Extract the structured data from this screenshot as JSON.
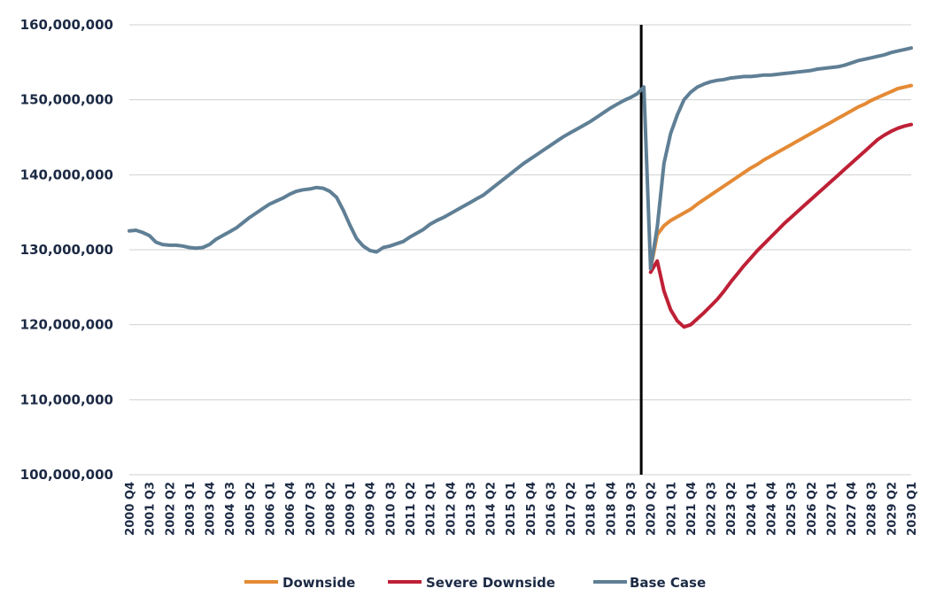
{
  "chart_data": {
    "type": "line",
    "title": "",
    "xlabel": "",
    "ylabel": "",
    "ylim": [
      100000000,
      160000000
    ],
    "yticks": [
      "100,000,000",
      "110,000,000",
      "120,000,000",
      "130,000,000",
      "140,000,000",
      "150,000,000",
      "160,000,000"
    ],
    "ytick_values": [
      100000000,
      110000000,
      120000000,
      130000000,
      140000000,
      150000000,
      160000000
    ],
    "x_range": [
      "2000 Q4",
      "2030 Q1"
    ],
    "xticks": [
      "2000 Q4",
      "2001 Q3",
      "2002 Q2",
      "2003 Q1",
      "2003 Q4",
      "2004 Q3",
      "2005 Q2",
      "2006 Q1",
      "2006 Q4",
      "2007 Q3",
      "2008 Q2",
      "2009 Q1",
      "2009 Q4",
      "2010 Q3",
      "2011 Q2",
      "2012 Q1",
      "2012 Q4",
      "2013 Q3",
      "2014 Q2",
      "2015 Q1",
      "2015 Q4",
      "2016 Q3",
      "2017 Q2",
      "2018 Q1",
      "2018 Q4",
      "2019 Q3",
      "2020 Q2",
      "2021 Q1",
      "2021 Q4",
      "2022 Q3",
      "2023 Q2",
      "2024 Q1",
      "2024 Q4",
      "2025 Q3",
      "2026 Q2",
      "2027 Q1",
      "2027 Q4",
      "2028 Q3",
      "2029 Q2",
      "2030 Q1"
    ],
    "grid": true,
    "legend_position": "bottom",
    "vertical_marker": "2020 Q1",
    "series": [
      {
        "name": "Base Case",
        "color": "#5f7f95",
        "points": [
          [
            "2000 Q4",
            132500000
          ],
          [
            "2001 Q1",
            132600000
          ],
          [
            "2001 Q2",
            132300000
          ],
          [
            "2001 Q3",
            131900000
          ],
          [
            "2001 Q4",
            131000000
          ],
          [
            "2002 Q1",
            130700000
          ],
          [
            "2002 Q2",
            130600000
          ],
          [
            "2002 Q3",
            130600000
          ],
          [
            "2002 Q4",
            130500000
          ],
          [
            "2003 Q1",
            130300000
          ],
          [
            "2003 Q2",
            130200000
          ],
          [
            "2003 Q3",
            130300000
          ],
          [
            "2003 Q4",
            130700000
          ],
          [
            "2004 Q1",
            131400000
          ],
          [
            "2004 Q2",
            131900000
          ],
          [
            "2004 Q3",
            132400000
          ],
          [
            "2004 Q4",
            132900000
          ],
          [
            "2005 Q1",
            133600000
          ],
          [
            "2005 Q2",
            134300000
          ],
          [
            "2005 Q3",
            134900000
          ],
          [
            "2005 Q4",
            135500000
          ],
          [
            "2006 Q1",
            136100000
          ],
          [
            "2006 Q2",
            136500000
          ],
          [
            "2006 Q3",
            136900000
          ],
          [
            "2006 Q4",
            137400000
          ],
          [
            "2007 Q1",
            137800000
          ],
          [
            "2007 Q2",
            138000000
          ],
          [
            "2007 Q3",
            138100000
          ],
          [
            "2007 Q4",
            138300000
          ],
          [
            "2008 Q1",
            138200000
          ],
          [
            "2008 Q2",
            137800000
          ],
          [
            "2008 Q3",
            137000000
          ],
          [
            "2008 Q4",
            135300000
          ],
          [
            "2009 Q1",
            133300000
          ],
          [
            "2009 Q2",
            131500000
          ],
          [
            "2009 Q3",
            130500000
          ],
          [
            "2009 Q4",
            129900000
          ],
          [
            "2010 Q1",
            129700000
          ],
          [
            "2010 Q2",
            130300000
          ],
          [
            "2010 Q3",
            130500000
          ],
          [
            "2010 Q4",
            130800000
          ],
          [
            "2011 Q1",
            131100000
          ],
          [
            "2011 Q2",
            131700000
          ],
          [
            "2011 Q3",
            132200000
          ],
          [
            "2011 Q4",
            132700000
          ],
          [
            "2012 Q1",
            133400000
          ],
          [
            "2012 Q2",
            133900000
          ],
          [
            "2012 Q3",
            134300000
          ],
          [
            "2012 Q4",
            134800000
          ],
          [
            "2013 Q1",
            135300000
          ],
          [
            "2013 Q2",
            135800000
          ],
          [
            "2013 Q3",
            136300000
          ],
          [
            "2013 Q4",
            136800000
          ],
          [
            "2014 Q1",
            137300000
          ],
          [
            "2014 Q2",
            138000000
          ],
          [
            "2014 Q3",
            138700000
          ],
          [
            "2014 Q4",
            139400000
          ],
          [
            "2015 Q1",
            140100000
          ],
          [
            "2015 Q2",
            140800000
          ],
          [
            "2015 Q3",
            141500000
          ],
          [
            "2015 Q4",
            142100000
          ],
          [
            "2016 Q1",
            142700000
          ],
          [
            "2016 Q2",
            143300000
          ],
          [
            "2016 Q3",
            143900000
          ],
          [
            "2016 Q4",
            144500000
          ],
          [
            "2017 Q1",
            145100000
          ],
          [
            "2017 Q2",
            145600000
          ],
          [
            "2017 Q3",
            146100000
          ],
          [
            "2017 Q4",
            146600000
          ],
          [
            "2018 Q1",
            147100000
          ],
          [
            "2018 Q2",
            147700000
          ],
          [
            "2018 Q3",
            148300000
          ],
          [
            "2018 Q4",
            148900000
          ],
          [
            "2019 Q1",
            149400000
          ],
          [
            "2019 Q2",
            149900000
          ],
          [
            "2019 Q3",
            150300000
          ],
          [
            "2019 Q4",
            150800000
          ],
          [
            "2020 Q1",
            151700000
          ],
          [
            "2020 Q2",
            127500000
          ],
          [
            "2020 Q3",
            133000000
          ],
          [
            "2020 Q4",
            141500000
          ],
          [
            "2021 Q1",
            145500000
          ],
          [
            "2021 Q2",
            148000000
          ],
          [
            "2021 Q3",
            150000000
          ],
          [
            "2021 Q4",
            151000000
          ],
          [
            "2022 Q1",
            151700000
          ],
          [
            "2022 Q2",
            152100000
          ],
          [
            "2022 Q3",
            152400000
          ],
          [
            "2022 Q4",
            152600000
          ],
          [
            "2023 Q1",
            152700000
          ],
          [
            "2023 Q2",
            152900000
          ],
          [
            "2023 Q3",
            153000000
          ],
          [
            "2023 Q4",
            153100000
          ],
          [
            "2024 Q1",
            153100000
          ],
          [
            "2024 Q2",
            153200000
          ],
          [
            "2024 Q3",
            153300000
          ],
          [
            "2024 Q4",
            153300000
          ],
          [
            "2025 Q1",
            153400000
          ],
          [
            "2025 Q2",
            153500000
          ],
          [
            "2025 Q3",
            153600000
          ],
          [
            "2025 Q4",
            153700000
          ],
          [
            "2026 Q1",
            153800000
          ],
          [
            "2026 Q2",
            153900000
          ],
          [
            "2026 Q3",
            154100000
          ],
          [
            "2026 Q4",
            154200000
          ],
          [
            "2027 Q1",
            154300000
          ],
          [
            "2027 Q2",
            154400000
          ],
          [
            "2027 Q3",
            154600000
          ],
          [
            "2027 Q4",
            154900000
          ],
          [
            "2028 Q1",
            155200000
          ],
          [
            "2028 Q2",
            155400000
          ],
          [
            "2028 Q3",
            155600000
          ],
          [
            "2028 Q4",
            155800000
          ],
          [
            "2029 Q1",
            156000000
          ],
          [
            "2029 Q2",
            156300000
          ],
          [
            "2029 Q3",
            156500000
          ],
          [
            "2029 Q4",
            156700000
          ],
          [
            "2030 Q1",
            156900000
          ]
        ]
      },
      {
        "name": "Downside",
        "color": "#e48a35",
        "points": [
          [
            "2020 Q2",
            127500000
          ],
          [
            "2020 Q3",
            132000000
          ],
          [
            "2020 Q4",
            133200000
          ],
          [
            "2021 Q1",
            133900000
          ],
          [
            "2021 Q2",
            134400000
          ],
          [
            "2021 Q3",
            134900000
          ],
          [
            "2021 Q4",
            135400000
          ],
          [
            "2022 Q1",
            136100000
          ],
          [
            "2022 Q2",
            136700000
          ],
          [
            "2022 Q3",
            137300000
          ],
          [
            "2022 Q4",
            137900000
          ],
          [
            "2023 Q1",
            138500000
          ],
          [
            "2023 Q2",
            139100000
          ],
          [
            "2023 Q3",
            139700000
          ],
          [
            "2023 Q4",
            140300000
          ],
          [
            "2024 Q1",
            140900000
          ],
          [
            "2024 Q2",
            141400000
          ],
          [
            "2024 Q3",
            142000000
          ],
          [
            "2024 Q4",
            142500000
          ],
          [
            "2025 Q1",
            143000000
          ],
          [
            "2025 Q2",
            143500000
          ],
          [
            "2025 Q3",
            144000000
          ],
          [
            "2025 Q4",
            144500000
          ],
          [
            "2026 Q1",
            145000000
          ],
          [
            "2026 Q2",
            145500000
          ],
          [
            "2026 Q3",
            146000000
          ],
          [
            "2026 Q4",
            146500000
          ],
          [
            "2027 Q1",
            147000000
          ],
          [
            "2027 Q2",
            147500000
          ],
          [
            "2027 Q3",
            148000000
          ],
          [
            "2027 Q4",
            148500000
          ],
          [
            "2028 Q1",
            149000000
          ],
          [
            "2028 Q2",
            149400000
          ],
          [
            "2028 Q3",
            149900000
          ],
          [
            "2028 Q4",
            150300000
          ],
          [
            "2029 Q1",
            150700000
          ],
          [
            "2029 Q2",
            151100000
          ],
          [
            "2029 Q3",
            151500000
          ],
          [
            "2029 Q4",
            151700000
          ],
          [
            "2030 Q1",
            151900000
          ]
        ]
      },
      {
        "name": "Severe Downside",
        "color": "#be2036",
        "points": [
          [
            "2020 Q2",
            127000000
          ],
          [
            "2020 Q3",
            128500000
          ],
          [
            "2020 Q4",
            124500000
          ],
          [
            "2021 Q1",
            122000000
          ],
          [
            "2021 Q2",
            120500000
          ],
          [
            "2021 Q3",
            119700000
          ],
          [
            "2021 Q4",
            120000000
          ],
          [
            "2022 Q1",
            120800000
          ],
          [
            "2022 Q2",
            121600000
          ],
          [
            "2022 Q3",
            122500000
          ],
          [
            "2022 Q4",
            123400000
          ],
          [
            "2023 Q1",
            124500000
          ],
          [
            "2023 Q2",
            125700000
          ],
          [
            "2023 Q3",
            126800000
          ],
          [
            "2023 Q4",
            127900000
          ],
          [
            "2024 Q1",
            128900000
          ],
          [
            "2024 Q2",
            129900000
          ],
          [
            "2024 Q3",
            130800000
          ],
          [
            "2024 Q4",
            131700000
          ],
          [
            "2025 Q1",
            132600000
          ],
          [
            "2025 Q2",
            133500000
          ],
          [
            "2025 Q3",
            134300000
          ],
          [
            "2025 Q4",
            135100000
          ],
          [
            "2026 Q1",
            135900000
          ],
          [
            "2026 Q2",
            136700000
          ],
          [
            "2026 Q3",
            137500000
          ],
          [
            "2026 Q4",
            138300000
          ],
          [
            "2027 Q1",
            139100000
          ],
          [
            "2027 Q2",
            139900000
          ],
          [
            "2027 Q3",
            140700000
          ],
          [
            "2027 Q4",
            141500000
          ],
          [
            "2028 Q1",
            142300000
          ],
          [
            "2028 Q2",
            143100000
          ],
          [
            "2028 Q3",
            143900000
          ],
          [
            "2028 Q4",
            144700000
          ],
          [
            "2029 Q1",
            145300000
          ],
          [
            "2029 Q2",
            145800000
          ],
          [
            "2029 Q3",
            146200000
          ],
          [
            "2029 Q4",
            146500000
          ],
          [
            "2030 Q1",
            146700000
          ]
        ]
      }
    ],
    "legend": [
      {
        "label": "Downside",
        "color": "#e48a35"
      },
      {
        "label": "Severe Downside",
        "color": "#be2036"
      },
      {
        "label": "Base Case",
        "color": "#5f7f95"
      }
    ]
  }
}
